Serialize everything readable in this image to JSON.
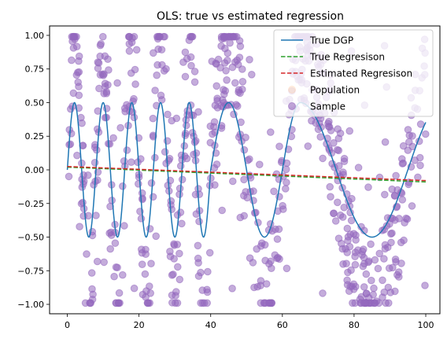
{
  "chart_data": {
    "type": "scatter",
    "title": "OLS: true vs estimated regression",
    "xlabel": "",
    "ylabel": "",
    "xlim": [
      -4.95,
      103.95
    ],
    "ylim": [
      -1.07,
      1.07
    ],
    "x_ticks": [
      0,
      20,
      40,
      60,
      80,
      100
    ],
    "x_tick_labels": [
      "0",
      "20",
      "40",
      "60",
      "80",
      "100"
    ],
    "y_ticks": [
      -1.0,
      -0.75,
      -0.5,
      -0.25,
      0.0,
      0.25,
      0.5,
      0.75,
      1.0
    ],
    "y_tick_labels": [
      "−1.00",
      "−0.75",
      "−0.50",
      "−0.25",
      "0.00",
      "0.25",
      "0.50",
      "0.75",
      "1.00"
    ],
    "grid": false,
    "legend_position": "upper-right",
    "series": [
      {
        "name": "True DGP",
        "kind": "line",
        "style": "solid",
        "color": "#1f77b4",
        "description": "y = 0.5 sin(2πx/T(x)); period ~8 for x<40, then widens (~20 up to x~65, ~40 after)"
      },
      {
        "name": "True Regresison",
        "kind": "line",
        "style": "dashed",
        "color": "#2ca02c",
        "x": [
          0,
          100
        ],
        "y": [
          0.02,
          -0.09
        ]
      },
      {
        "name": "Estimated Regresison",
        "kind": "line",
        "style": "dashed",
        "color": "#d62728",
        "x": [
          0,
          100
        ],
        "y": [
          0.025,
          -0.08
        ]
      },
      {
        "name": "Population",
        "kind": "scatter",
        "color": "#ff7f0e",
        "alpha": 0.1,
        "description": "not visibly drawn"
      },
      {
        "name": "Sample",
        "kind": "scatter",
        "color": "#9467bd",
        "alpha": 0.6,
        "n_points": 750,
        "description": "y ≈ 2 × DGP(x) + noise, ±1.0 range"
      }
    ]
  }
}
